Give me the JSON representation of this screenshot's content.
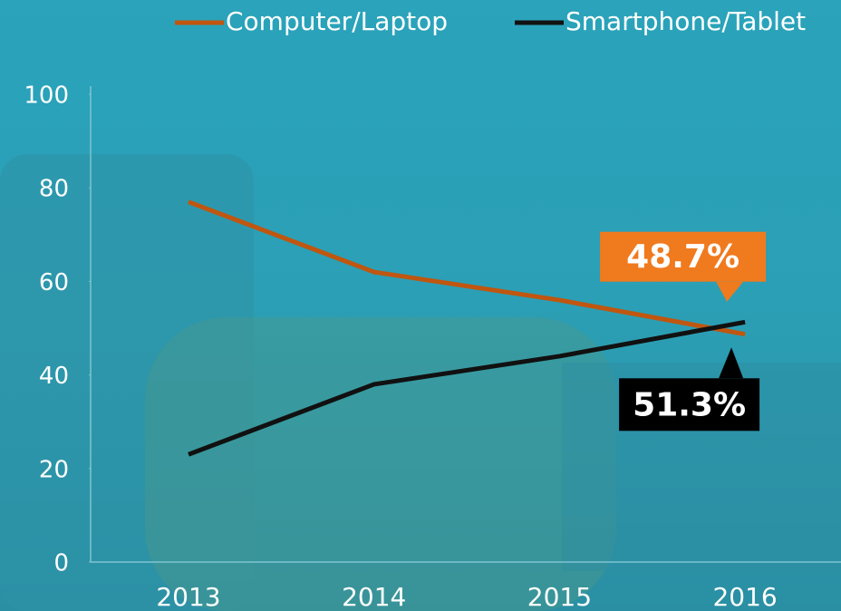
{
  "chart_data": {
    "type": "line",
    "categories": [
      "2013",
      "2014",
      "2015",
      "2016"
    ],
    "series": [
      {
        "name": "Computer/Laptop",
        "color": "#c0560f",
        "values": [
          77,
          62,
          56,
          48.7
        ],
        "value_labels": [
          null,
          null,
          null,
          "48.7%"
        ],
        "label_color": "#f07a1e"
      },
      {
        "name": "Smartphone/Tablet",
        "color": "#111111",
        "values": [
          23,
          38,
          44,
          51.3
        ],
        "value_labels": [
          null,
          null,
          null,
          "51.3%"
        ],
        "label_color": "#000000"
      }
    ],
    "ylim": [
      0,
      100
    ],
    "yticks": [
      0,
      20,
      40,
      60,
      80,
      100
    ],
    "legend": "top"
  }
}
